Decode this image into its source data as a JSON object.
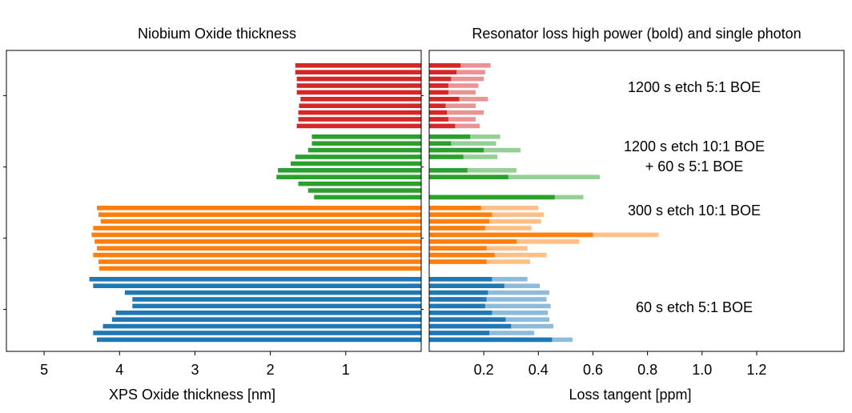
{
  "chart_data": [
    {
      "type": "bar",
      "orientation": "horizontal",
      "title": "Niobium Oxide thickness",
      "xlabel": "XPS Oxide thickness [nm]",
      "ylabel": "",
      "x_inverted": true,
      "xlim": [
        5.5,
        0.0
      ],
      "xticks": [
        5,
        4,
        3,
        2,
        1
      ],
      "groups": [
        {
          "name": "1200 s etch 5:1 BOE",
          "color": "#d62728",
          "values": [
            1.67,
            1.67,
            1.65,
            1.65,
            1.65,
            1.6,
            1.62,
            1.63,
            1.63,
            1.65
          ]
        },
        {
          "name": "1200 s etch 10:1 BOE + 60 s 5:1 BOE",
          "color": "#2ca02c",
          "values": [
            1.45,
            1.45,
            1.5,
            1.67,
            1.73,
            1.9,
            1.92,
            1.63,
            1.5,
            1.42
          ]
        },
        {
          "name": "300 s etch 10:1 BOE",
          "color": "#ff7f0e",
          "values": [
            4.3,
            4.28,
            4.25,
            4.35,
            4.37,
            4.33,
            4.3,
            4.35,
            4.28,
            4.27
          ]
        },
        {
          "name": "60 s etch 5:1 BOE",
          "color": "#1f77b4",
          "values": [
            4.4,
            4.35,
            3.93,
            3.83,
            3.83,
            4.05,
            4.1,
            4.22,
            4.35,
            4.3
          ]
        }
      ]
    },
    {
      "type": "bar",
      "orientation": "horizontal",
      "title": "Resonator loss high power (bold) and single photon",
      "xlabel": "Loss tangent [ppm]",
      "ylabel": "",
      "xlim": [
        0.0,
        1.52
      ],
      "xticks": [
        0.2,
        0.4,
        0.6,
        0.8,
        1.0,
        1.2
      ],
      "xtick_labels": [
        "0.2",
        "0.4",
        "0.6",
        "0.8",
        "1.0",
        "1.2"
      ],
      "series_note": "bold = high power, light = single photon",
      "groups": [
        {
          "name": "1200 s etch 5:1 BOE",
          "color": "#d62728",
          "high_power": [
            0.115,
            0.1,
            0.08,
            0.07,
            0.07,
            0.11,
            0.06,
            0.065,
            0.07,
            0.095
          ],
          "single_photon": [
            0.225,
            0.205,
            0.2,
            0.18,
            0.17,
            0.215,
            0.17,
            0.2,
            0.17,
            0.185
          ]
        },
        {
          "name": "1200 s etch 10:1 BOE + 60 s 5:1 BOE",
          "color": "#2ca02c",
          "high_power": [
            0.15,
            0.08,
            0.2,
            0.125,
            0.0,
            0.14,
            0.29,
            0.0,
            0.0,
            0.46
          ],
          "single_photon": [
            0.26,
            0.245,
            0.335,
            0.25,
            0.0,
            0.32,
            0.625,
            0.0,
            0.0,
            0.565
          ]
        },
        {
          "name": "300 s etch 10:1 BOE",
          "color": "#ff7f0e",
          "high_power": [
            0.19,
            0.23,
            0.22,
            0.205,
            0.6,
            0.32,
            0.21,
            0.24,
            0.21,
            0.0
          ],
          "single_photon": [
            0.4,
            0.42,
            0.41,
            0.375,
            0.84,
            0.55,
            0.36,
            0.43,
            0.37,
            0.0
          ]
        },
        {
          "name": "60 s etch 5:1 BOE",
          "color": "#1f77b4",
          "high_power": [
            0.23,
            0.275,
            0.215,
            0.21,
            0.205,
            0.23,
            0.28,
            0.3,
            0.22,
            0.45
          ],
          "single_photon": [
            0.36,
            0.405,
            0.44,
            0.43,
            0.445,
            0.435,
            0.44,
            0.455,
            0.385,
            0.525
          ]
        }
      ]
    }
  ],
  "annotations": {
    "group1": "1200 s etch 5:1 BOE",
    "group2_line1": "1200 s etch 10:1 BOE",
    "group2_line2": "+ 60 s 5:1 BOE",
    "group3": "300 s etch 10:1 BOE",
    "group4": "60 s etch 5:1 BOE"
  }
}
